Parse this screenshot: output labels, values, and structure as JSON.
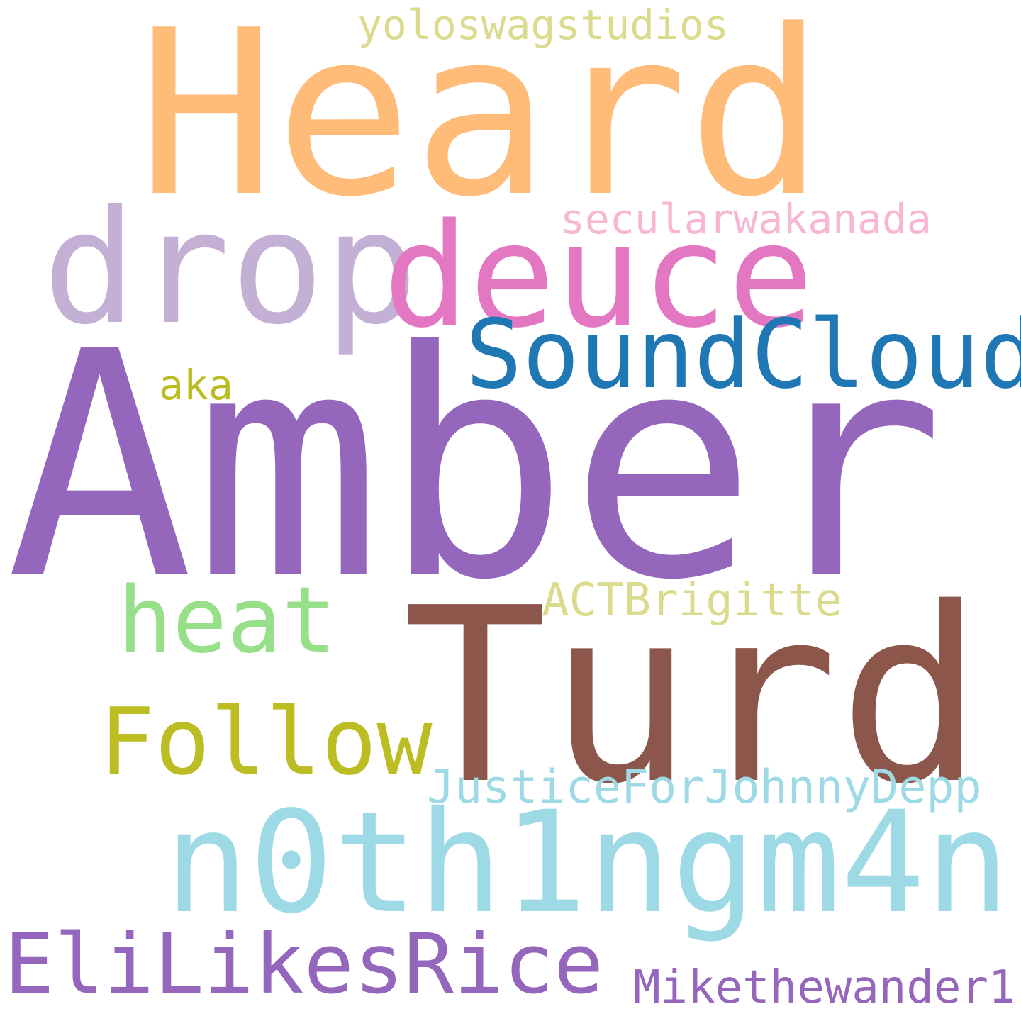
{
  "words": [
    {
      "text": "Amber",
      "color": "#9467bd"
    },
    {
      "text": "Heard",
      "color": "#ffbb78"
    },
    {
      "text": "Turd",
      "color": "#8c564b"
    },
    {
      "text": "n0th1ngm4n",
      "color": "#9edae5"
    },
    {
      "text": "drop",
      "color": "#c5b0d5"
    },
    {
      "text": "deuce",
      "color": "#e377c2"
    },
    {
      "text": "SoundCloud",
      "color": "#1f77b4"
    },
    {
      "text": "EliLikesRice",
      "color": "#9467bd"
    },
    {
      "text": "Follow",
      "color": "#bcbd22"
    },
    {
      "text": "heat",
      "color": "#98df8a"
    },
    {
      "text": "JusticeForJohnnyDepp",
      "color": "#9edae5"
    },
    {
      "text": "Mikethewander1",
      "color": "#9467bd"
    },
    {
      "text": "ACTBrigitte",
      "color": "#dbdb8d"
    },
    {
      "text": "secularwakanada",
      "color": "#f7b6d2"
    },
    {
      "text": "yoloswagstudios",
      "color": "#dbdb8d"
    },
    {
      "text": "aka",
      "color": "#bcbd22"
    }
  ]
}
